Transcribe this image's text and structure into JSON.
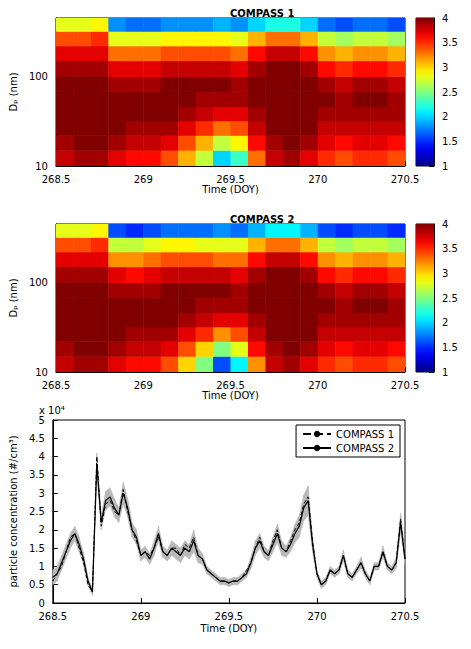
{
  "chart_data": [
    {
      "type": "heatmap",
      "title": "COMPASS 1",
      "xlabel": "Time (DOY)",
      "ylabel": "Dₚ (nm)",
      "log": "y",
      "grid": false,
      "color": "jet",
      "xlim": [
        268.5,
        270.5
      ],
      "xticks": [
        268.5,
        269,
        269.5,
        270,
        270.5
      ],
      "ylim": [
        10,
        450
      ],
      "yticks": [
        10,
        100
      ],
      "x_edges": [
        268.5,
        268.6,
        268.7,
        268.8,
        268.9,
        269,
        269.1,
        269.2,
        269.3,
        269.4,
        269.5,
        269.6,
        269.7,
        269.8,
        269.9,
        270,
        270.1,
        270.2,
        270.3,
        270.4,
        270.5
      ],
      "y_edges": [
        10,
        15,
        22,
        32,
        46,
        68,
        100,
        150,
        220,
        320,
        450
      ],
      "values": [
        [
          3.8,
          3.9,
          3.9,
          3.7,
          3.6,
          3.6,
          3.4,
          3.1,
          2.7,
          2.0,
          2.3,
          3.3,
          3.8,
          3.9,
          3.7,
          3.5,
          3.4,
          3.5,
          3.5,
          3.4
        ],
        [
          3.9,
          4,
          4,
          3.9,
          3.8,
          3.8,
          3.7,
          3.4,
          3.1,
          2.7,
          2.9,
          3.6,
          3.9,
          4,
          3.9,
          3.7,
          3.6,
          3.7,
          3.7,
          3.6
        ],
        [
          4,
          4,
          4,
          4,
          3.9,
          3.9,
          3.9,
          3.7,
          3.5,
          3.3,
          3.4,
          3.8,
          4,
          4,
          4,
          3.8,
          3.8,
          3.8,
          3.8,
          3.8
        ],
        [
          4,
          4,
          4,
          4,
          4,
          4,
          4,
          3.9,
          3.8,
          3.7,
          3.7,
          3.9,
          4,
          4,
          4,
          3.9,
          3.9,
          3.9,
          3.9,
          3.9
        ],
        [
          4,
          4,
          4,
          4,
          4,
          4,
          4,
          4,
          3.9,
          3.9,
          3.9,
          4,
          4,
          4,
          4,
          4,
          3.9,
          4,
          4,
          3.9
        ],
        [
          4,
          4,
          4,
          3.9,
          3.9,
          3.9,
          4,
          4,
          4,
          4,
          3.9,
          4,
          4,
          4,
          4,
          3.9,
          3.8,
          3.9,
          3.9,
          3.8
        ],
        [
          3.9,
          3.9,
          3.9,
          3.7,
          3.7,
          3.7,
          3.8,
          3.8,
          3.8,
          3.8,
          3.7,
          3.9,
          4,
          4,
          3.9,
          3.6,
          3.5,
          3.6,
          3.6,
          3.5
        ],
        [
          3.7,
          3.7,
          3.7,
          3.3,
          3.3,
          3.3,
          3.4,
          3.4,
          3.4,
          3.4,
          3.3,
          3.6,
          3.8,
          3.8,
          3.6,
          3.2,
          3.1,
          3.2,
          3.2,
          3.1
        ],
        [
          3.4,
          3.4,
          3.5,
          2.8,
          2.8,
          2.8,
          2.9,
          2.9,
          2.9,
          2.9,
          2.8,
          3.1,
          3.3,
          3.3,
          3.1,
          2.7,
          2.6,
          2.7,
          2.7,
          2.6
        ],
        [
          2.8,
          2.8,
          2.9,
          1.8,
          1.7,
          1.7,
          1.8,
          1.8,
          1.8,
          1.9,
          1.8,
          2.0,
          2.2,
          2.2,
          2.0,
          1.7,
          1.6,
          1.7,
          1.7,
          1.6
        ]
      ],
      "colorbar": {
        "range": [
          1,
          4
        ],
        "ticks": [
          1,
          1.5,
          2,
          2.5,
          3,
          3.5,
          4
        ]
      }
    },
    {
      "type": "heatmap",
      "title": "COMPASS 2",
      "xlabel": "Time (DOY)",
      "ylabel": "Dₚ (nm)",
      "log": "y",
      "grid": false,
      "color": "jet",
      "xlim": [
        268.5,
        270.5
      ],
      "xticks": [
        268.5,
        269,
        269.5,
        270,
        270.5
      ],
      "ylim": [
        10,
        450
      ],
      "yticks": [
        10,
        100
      ],
      "x_edges": [
        268.5,
        268.6,
        268.7,
        268.8,
        268.9,
        269,
        269.1,
        269.2,
        269.3,
        269.4,
        269.5,
        269.6,
        269.7,
        269.8,
        269.9,
        270,
        270.1,
        270.2,
        270.3,
        270.4,
        270.5
      ],
      "y_edges": [
        10,
        15,
        22,
        32,
        46,
        68,
        100,
        150,
        220,
        320,
        450
      ],
      "values": [
        [
          3.8,
          3.9,
          3.9,
          3.7,
          3.6,
          3.6,
          3.4,
          3.0,
          2.5,
          1.6,
          2.1,
          3.2,
          3.8,
          3.9,
          3.7,
          3.5,
          3.4,
          3.5,
          3.5,
          3.4
        ],
        [
          3.9,
          4,
          4,
          3.9,
          3.8,
          3.8,
          3.7,
          3.4,
          3.0,
          2.5,
          2.8,
          3.6,
          3.9,
          4,
          3.9,
          3.7,
          3.6,
          3.7,
          3.7,
          3.6
        ],
        [
          4,
          4,
          4,
          4,
          3.9,
          3.9,
          3.9,
          3.7,
          3.5,
          3.2,
          3.4,
          3.8,
          4,
          4,
          4,
          3.8,
          3.8,
          3.8,
          3.8,
          3.8
        ],
        [
          4,
          4,
          4,
          4,
          4,
          4,
          4,
          3.9,
          3.8,
          3.7,
          3.7,
          3.9,
          4,
          4,
          4,
          3.9,
          3.9,
          3.9,
          3.9,
          3.9
        ],
        [
          4,
          4,
          4,
          4,
          4,
          4,
          4,
          4,
          3.9,
          3.9,
          3.9,
          4,
          4,
          4,
          4,
          4,
          3.9,
          4,
          4,
          3.9
        ],
        [
          4,
          4,
          4,
          3.9,
          3.9,
          3.9,
          4,
          4,
          4,
          4,
          3.9,
          4,
          4,
          4,
          4,
          3.9,
          3.8,
          3.9,
          3.9,
          3.8
        ],
        [
          3.9,
          3.9,
          3.9,
          3.7,
          3.6,
          3.7,
          3.8,
          3.8,
          3.8,
          3.8,
          3.7,
          3.9,
          4,
          4,
          3.9,
          3.6,
          3.5,
          3.6,
          3.6,
          3.5
        ],
        [
          3.7,
          3.7,
          3.7,
          3.2,
          3.2,
          3.3,
          3.4,
          3.4,
          3.4,
          3.3,
          3.3,
          3.6,
          3.8,
          3.8,
          3.6,
          3.2,
          3.1,
          3.2,
          3.2,
          3.1
        ],
        [
          3.4,
          3.4,
          3.5,
          2.7,
          2.7,
          2.8,
          2.9,
          2.9,
          2.8,
          2.8,
          2.8,
          3.1,
          3.3,
          3.3,
          3.1,
          2.7,
          2.6,
          2.7,
          2.7,
          2.6
        ],
        [
          2.8,
          2.8,
          2.9,
          1.6,
          1.5,
          1.6,
          1.7,
          1.7,
          1.7,
          1.8,
          1.7,
          1.9,
          2.1,
          2.1,
          1.9,
          1.6,
          1.5,
          1.6,
          1.6,
          1.5
        ]
      ],
      "colorbar": {
        "range": [
          1,
          4
        ],
        "ticks": [
          1,
          1.5,
          2,
          2.5,
          3,
          3.5,
          4
        ]
      }
    },
    {
      "type": "line",
      "xlabel": "Time (DOY)",
      "ylabel": "particle concentration (#/cm³)",
      "annotation": "x 10⁴",
      "legend": "upper right",
      "grid": false,
      "xlim": [
        268.5,
        270.5
      ],
      "xticks": [
        268.5,
        269,
        269.5,
        270,
        270.5
      ],
      "ylim": [
        0,
        5
      ],
      "yticks": [
        0,
        0.5,
        1,
        1.5,
        2,
        2.5,
        3,
        3.5,
        4,
        4.5,
        5
      ],
      "x": [
        268.5,
        268.525,
        268.55,
        268.575,
        268.6,
        268.625,
        268.65,
        268.675,
        268.7,
        268.725,
        268.75,
        268.775,
        268.8,
        268.825,
        268.85,
        268.875,
        268.9,
        268.925,
        268.95,
        268.975,
        269,
        269.025,
        269.05,
        269.075,
        269.1,
        269.125,
        269.15,
        269.175,
        269.2,
        269.225,
        269.25,
        269.275,
        269.3,
        269.325,
        269.35,
        269.375,
        269.4,
        269.425,
        269.45,
        269.475,
        269.5,
        269.525,
        269.55,
        269.575,
        269.6,
        269.625,
        269.65,
        269.675,
        269.7,
        269.725,
        269.75,
        269.775,
        269.8,
        269.825,
        269.85,
        269.875,
        269.9,
        269.925,
        269.95,
        269.975,
        270,
        270.025,
        270.05,
        270.075,
        270.1,
        270.125,
        270.15,
        270.175,
        270.2,
        270.225,
        270.25,
        270.275,
        270.3,
        270.325,
        270.35,
        270.375,
        270.4,
        270.425,
        270.45,
        270.475,
        270.5
      ],
      "series": [
        {
          "name": "COMPASS 1",
          "color": "#000000",
          "line_style": "dashed",
          "values": [
            0.6,
            0.8,
            1.0,
            1.4,
            1.8,
            1.9,
            1.5,
            1.1,
            0.5,
            0.3,
            4.0,
            2.1,
            2.7,
            2.8,
            2.5,
            2.4,
            3.1,
            2.5,
            2.0,
            1.7,
            1.3,
            1.4,
            1.3,
            1.5,
            1.8,
            1.4,
            1.3,
            1.5,
            1.5,
            1.3,
            1.6,
            1.5,
            1.8,
            1.3,
            1.2,
            0.9,
            0.8,
            0.7,
            0.6,
            0.6,
            0.55,
            0.6,
            0.6,
            0.7,
            0.9,
            1.1,
            1.5,
            1.8,
            1.4,
            1.3,
            1.7,
            2.0,
            1.5,
            1.4,
            1.7,
            2.0,
            2.2,
            2.7,
            2.9,
            1.7,
            0.8,
            0.5,
            0.6,
            0.9,
            0.8,
            0.9,
            1.3,
            0.8,
            0.7,
            0.9,
            1.1,
            0.8,
            0.6,
            1.0,
            1.0,
            1.4,
            1.0,
            0.9,
            1.1,
            2.3,
            1.2
          ]
        },
        {
          "name": "COMPASS 2",
          "color": "#000000",
          "line_style": "solid",
          "values": [
            0.7,
            0.8,
            1.1,
            1.4,
            1.7,
            1.9,
            1.6,
            1.2,
            0.6,
            0.3,
            3.8,
            2.2,
            2.8,
            2.9,
            2.6,
            2.4,
            3.0,
            2.6,
            2.0,
            1.8,
            1.3,
            1.4,
            1.2,
            1.5,
            1.9,
            1.4,
            1.3,
            1.5,
            1.4,
            1.3,
            1.5,
            1.4,
            1.7,
            1.3,
            1.2,
            0.9,
            0.8,
            0.7,
            0.6,
            0.6,
            0.55,
            0.6,
            0.6,
            0.7,
            0.8,
            1.1,
            1.5,
            1.7,
            1.4,
            1.3,
            1.6,
            1.9,
            1.5,
            1.4,
            1.6,
            1.9,
            2.1,
            2.6,
            2.8,
            1.6,
            0.8,
            0.5,
            0.6,
            0.9,
            0.8,
            0.9,
            1.3,
            0.8,
            0.7,
            0.9,
            1.1,
            0.8,
            0.6,
            1.0,
            1.0,
            1.4,
            1.0,
            0.9,
            1.1,
            2.2,
            1.2
          ],
          "error": [
            0.2,
            0.2,
            0.2,
            0.2,
            0.2,
            0.2,
            0.2,
            0.15,
            0.1,
            0.1,
            0.3,
            0.2,
            0.25,
            0.25,
            0.25,
            0.2,
            0.3,
            0.25,
            0.2,
            0.2,
            0.15,
            0.15,
            0.15,
            0.2,
            0.2,
            0.15,
            0.15,
            0.2,
            0.2,
            0.2,
            0.2,
            0.2,
            0.3,
            0.2,
            0.15,
            0.1,
            0.1,
            0.1,
            0.1,
            0.1,
            0.1,
            0.1,
            0.1,
            0.1,
            0.1,
            0.15,
            0.2,
            0.2,
            0.15,
            0.15,
            0.2,
            0.25,
            0.2,
            0.15,
            0.2,
            0.25,
            0.3,
            0.35,
            0.4,
            0.2,
            0.1,
            0.1,
            0.1,
            0.1,
            0.1,
            0.1,
            0.15,
            0.1,
            0.1,
            0.1,
            0.15,
            0.1,
            0.1,
            0.1,
            0.1,
            0.15,
            0.1,
            0.1,
            0.15,
            0.25,
            0.15
          ]
        }
      ]
    }
  ]
}
